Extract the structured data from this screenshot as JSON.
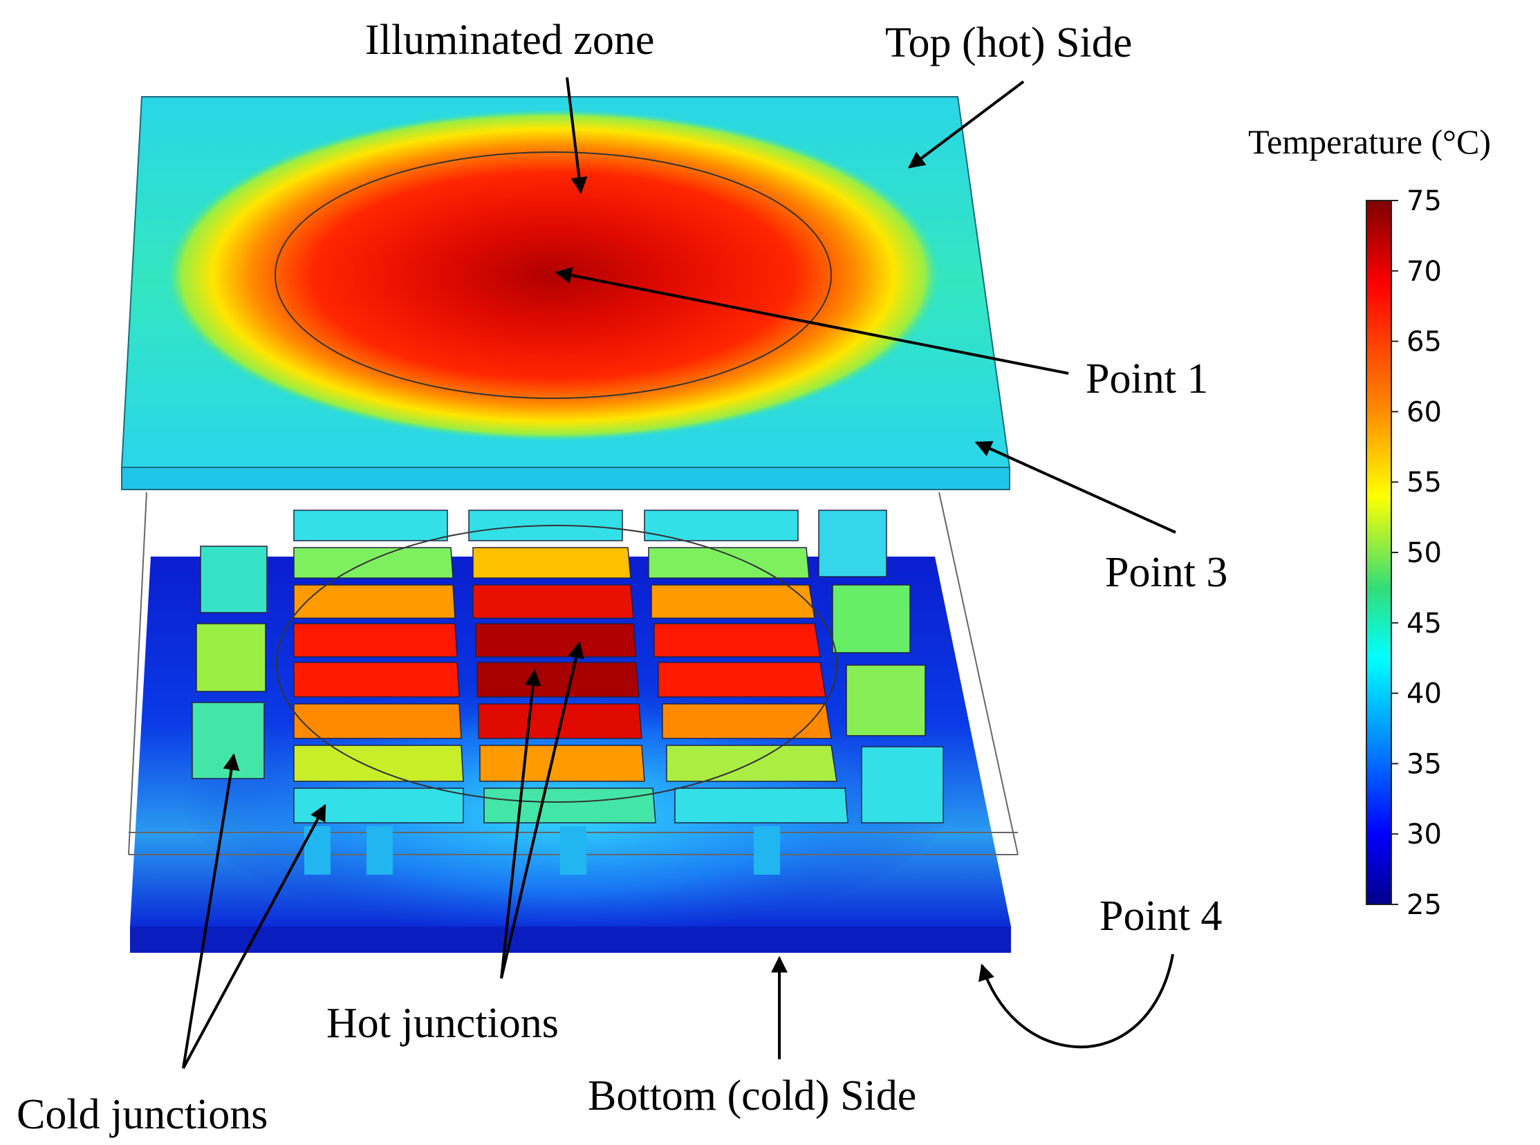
{
  "labels": {
    "illuminated_zone": "Illuminated zone",
    "top_side": "Top (hot) Side",
    "point1": "Point 1",
    "point3": "Point 3",
    "point4": "Point 4",
    "hot_junctions": "Hot junctions",
    "cold_junctions": "Cold junctions",
    "bottom_side": "Bottom (cold) Side"
  },
  "colorbar": {
    "title": "Temperature (°C)",
    "ticks": [
      "75",
      "70",
      "65",
      "60",
      "55",
      "50",
      "45",
      "40",
      "35",
      "30",
      "25"
    ],
    "min": 25,
    "max": 75
  },
  "colors": {
    "top_plate": "#2ee6d8",
    "bottom_plate": "#0a2ed8",
    "hot_core": "#a80000",
    "hot": "#ff1a00",
    "warm": "#ff8a00",
    "yellow": "#ffe600",
    "green": "#66ee55",
    "cyan": "#33e6e6"
  }
}
